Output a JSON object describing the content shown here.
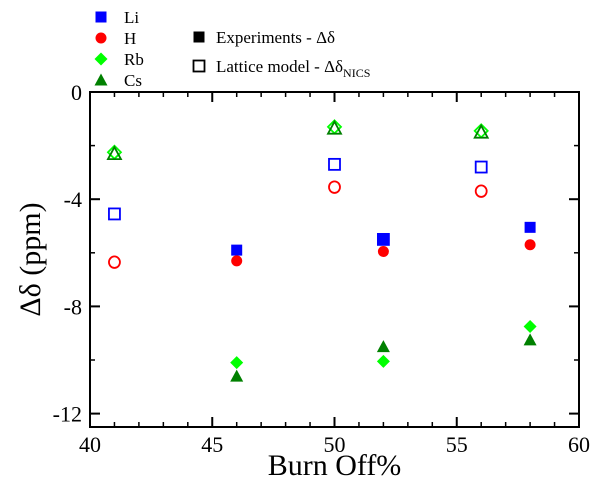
{
  "chart_data": {
    "type": "scatter",
    "xlabel": "Burn Off%",
    "ylabel_main": "Δδ",
    "ylabel_unit": "(ppm)",
    "xlim": [
      40,
      60
    ],
    "ylim": [
      -12.5,
      0
    ],
    "x_ticks": [
      "40",
      "45",
      "50",
      "55",
      "60"
    ],
    "y_ticks": [
      "0",
      "-4",
      "-8",
      "-12"
    ],
    "grid": false,
    "legend_position": "top-left",
    "experiments_legend": {
      "text": "Experiments - Δδ"
    },
    "lattice_legend": {
      "text": "Lattice model - Δδ",
      "subscript": "NICS"
    },
    "series": [
      {
        "name": "Li",
        "color": "#0000ff",
        "marker": "square",
        "experiments": {
          "x": [
            46,
            52,
            58
          ],
          "y": [
            -5.9,
            -5.5,
            -5.05
          ]
        },
        "lattice": {
          "x": [
            41,
            50,
            52,
            56
          ],
          "y": [
            -4.55,
            -2.7,
            -5.5,
            -2.8
          ]
        }
      },
      {
        "name": "H",
        "color": "#ff0000",
        "marker": "circle",
        "experiments": {
          "x": [
            46,
            52,
            58
          ],
          "y": [
            -6.3,
            -5.95,
            -5.7
          ]
        },
        "lattice": {
          "x": [
            41,
            50,
            56
          ],
          "y": [
            -6.35,
            -3.55,
            -3.7
          ]
        }
      },
      {
        "name": "Rb",
        "color": "#00ff00",
        "marker": "diamond",
        "experiments": {
          "x": [
            46,
            52,
            58
          ],
          "y": [
            -10.1,
            -10.05,
            -8.75
          ]
        },
        "lattice": {
          "x": [
            41,
            50,
            56
          ],
          "y": [
            -2.25,
            -1.3,
            -1.45
          ]
        }
      },
      {
        "name": "Cs",
        "color": "#008000",
        "marker": "triangle",
        "experiments": {
          "x": [
            46,
            52,
            58
          ],
          "y": [
            -10.6,
            -9.5,
            -9.25
          ]
        },
        "lattice": {
          "x": [
            41,
            50,
            56
          ],
          "y": [
            -2.3,
            -1.35,
            -1.5
          ]
        }
      }
    ]
  }
}
